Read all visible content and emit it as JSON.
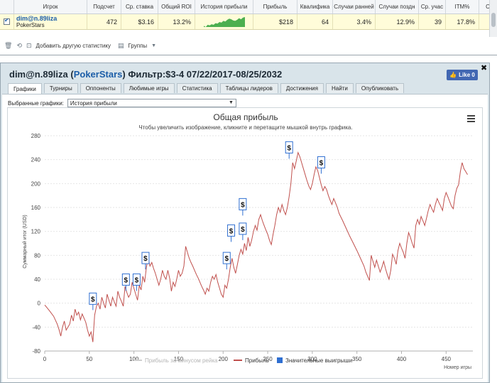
{
  "table": {
    "headers": [
      "Игрок",
      "Подсчет",
      "Ср. ставка",
      "Общий ROI",
      "История прибыли",
      "Прибыль",
      "Квалифика",
      "Случаи ранней",
      "Случаи поздн",
      "Ср. учас",
      "ITM%",
      "С"
    ],
    "row": {
      "player": "dim@n.89liza",
      "site": "PokerStars",
      "count": "472",
      "avg_stake": "$3.16",
      "roi": "13.2%",
      "profit": "$218",
      "qualify": "64",
      "early": "3.4%",
      "late": "12.9%",
      "avg_place": "39",
      "itm": "17.8%"
    },
    "sparkline": [
      0,
      -2,
      2,
      1,
      3,
      2,
      5,
      4,
      7,
      6,
      9,
      8,
      11,
      13,
      12,
      10,
      9,
      11,
      14,
      12,
      15,
      16
    ],
    "toolbar": {
      "add_stat": "Добавить другую статистику",
      "groups": "Группы"
    }
  },
  "window": {
    "player": "dim@n.89liza",
    "site": "PokerStars",
    "filter": "Фильтр:$3-4 07/22/2017-08/25/2032",
    "like_label": "Like 0",
    "tabs": [
      "Графики",
      "Турниры",
      "Оппоненты",
      "Любимые игры",
      "Статистика",
      "Таблицы лидеров",
      "Достижения",
      "Найти",
      "Опубликовать"
    ],
    "selected_label": "Выбранные графики:",
    "selected_value": "История прибыли"
  },
  "colors": {
    "profit_line": "#c0504d",
    "gridline": "#e6e6e6",
    "legend_blue": "#2f6fd1",
    "fb_blue": "#4267b2"
  },
  "chart_data": {
    "type": "line",
    "title": "Общая прибыль",
    "subtitle": "Чтобы увеличить изображение, кликните и перетащите мышкой внутрь графика.",
    "xlabel": "Номер игры",
    "ylabel": "Суммарный итог (USD)",
    "xlim": [
      0,
      480
    ],
    "ylim": [
      -80,
      280
    ],
    "xticks": [
      0,
      50,
      100,
      150,
      200,
      250,
      300,
      350,
      400,
      450
    ],
    "yticks": [
      -80,
      -40,
      0,
      40,
      80,
      120,
      160,
      200,
      240,
      280
    ],
    "grid": true,
    "legend_position": "bottom",
    "legend": [
      {
        "name": "Прибыль за минусом рейка",
        "color": "#cfcfcf"
      },
      {
        "name": "Прибыль",
        "color": "#c0504d"
      },
      {
        "name": "Значительные выигрыши",
        "color": "#2f6fd1"
      }
    ],
    "series": [
      {
        "name": "Прибыль",
        "color": "#c0504d",
        "points": [
          [
            0,
            -3
          ],
          [
            5,
            -12
          ],
          [
            10,
            -22
          ],
          [
            14,
            -35
          ],
          [
            16,
            -44
          ],
          [
            18,
            -55
          ],
          [
            20,
            -40
          ],
          [
            22,
            -30
          ],
          [
            24,
            -45
          ],
          [
            28,
            -35
          ],
          [
            30,
            -20
          ],
          [
            32,
            -30
          ],
          [
            34,
            -10
          ],
          [
            36,
            -20
          ],
          [
            38,
            -15
          ],
          [
            40,
            -28
          ],
          [
            42,
            -18
          ],
          [
            44,
            -25
          ],
          [
            46,
            -32
          ],
          [
            48,
            -45
          ],
          [
            50,
            -55
          ],
          [
            52,
            -48
          ],
          [
            54,
            -65
          ],
          [
            56,
            -20
          ],
          [
            58,
            -5
          ],
          [
            60,
            0
          ],
          [
            62,
            -10
          ],
          [
            64,
            10
          ],
          [
            66,
            0
          ],
          [
            68,
            -8
          ],
          [
            70,
            15
          ],
          [
            72,
            5
          ],
          [
            74,
            -5
          ],
          [
            76,
            10
          ],
          [
            78,
            2
          ],
          [
            80,
            -5
          ],
          [
            82,
            20
          ],
          [
            84,
            10
          ],
          [
            86,
            3
          ],
          [
            88,
            -5
          ],
          [
            90,
            28
          ],
          [
            92,
            18
          ],
          [
            94,
            10
          ],
          [
            96,
            15
          ],
          [
            98,
            35
          ],
          [
            100,
            25
          ],
          [
            102,
            15
          ],
          [
            104,
            5
          ],
          [
            106,
            30
          ],
          [
            108,
            22
          ],
          [
            110,
            45
          ],
          [
            112,
            35
          ],
          [
            114,
            60
          ],
          [
            116,
            75
          ],
          [
            118,
            62
          ],
          [
            120,
            68
          ],
          [
            122,
            58
          ],
          [
            124,
            50
          ],
          [
            126,
            40
          ],
          [
            128,
            30
          ],
          [
            130,
            40
          ],
          [
            132,
            55
          ],
          [
            134,
            45
          ],
          [
            136,
            40
          ],
          [
            138,
            55
          ],
          [
            140,
            42
          ],
          [
            142,
            20
          ],
          [
            144,
            35
          ],
          [
            146,
            28
          ],
          [
            148,
            40
          ],
          [
            150,
            55
          ],
          [
            152,
            45
          ],
          [
            154,
            50
          ],
          [
            156,
            62
          ],
          [
            158,
            95
          ],
          [
            160,
            85
          ],
          [
            162,
            75
          ],
          [
            164,
            68
          ],
          [
            166,
            62
          ],
          [
            168,
            55
          ],
          [
            170,
            48
          ],
          [
            172,
            42
          ],
          [
            174,
            35
          ],
          [
            176,
            28
          ],
          [
            178,
            22
          ],
          [
            180,
            15
          ],
          [
            182,
            25
          ],
          [
            184,
            20
          ],
          [
            186,
            35
          ],
          [
            188,
            45
          ],
          [
            190,
            40
          ],
          [
            192,
            48
          ],
          [
            194,
            35
          ],
          [
            196,
            25
          ],
          [
            198,
            15
          ],
          [
            200,
            10
          ],
          [
            202,
            30
          ],
          [
            204,
            25
          ],
          [
            206,
            40
          ],
          [
            208,
            60
          ],
          [
            210,
            75
          ],
          [
            212,
            60
          ],
          [
            214,
            50
          ],
          [
            216,
            65
          ],
          [
            218,
            80
          ],
          [
            220,
            90
          ],
          [
            222,
            82
          ],
          [
            224,
            100
          ],
          [
            226,
            88
          ],
          [
            228,
            110
          ],
          [
            230,
            95
          ],
          [
            232,
            105
          ],
          [
            234,
            120
          ],
          [
            236,
            130
          ],
          [
            238,
            122
          ],
          [
            240,
            140
          ],
          [
            242,
            148
          ],
          [
            244,
            138
          ],
          [
            246,
            130
          ],
          [
            248,
            122
          ],
          [
            250,
            115
          ],
          [
            252,
            105
          ],
          [
            254,
            98
          ],
          [
            256,
            115
          ],
          [
            258,
            130
          ],
          [
            260,
            148
          ],
          [
            262,
            160
          ],
          [
            264,
            152
          ],
          [
            266,
            165
          ],
          [
            268,
            155
          ],
          [
            270,
            148
          ],
          [
            272,
            160
          ],
          [
            274,
            178
          ],
          [
            276,
            200
          ],
          [
            278,
            235
          ],
          [
            280,
            225
          ],
          [
            282,
            238
          ],
          [
            284,
            252
          ],
          [
            286,
            245
          ],
          [
            288,
            235
          ],
          [
            290,
            225
          ],
          [
            292,
            215
          ],
          [
            294,
            205
          ],
          [
            296,
            196
          ],
          [
            298,
            190
          ],
          [
            300,
            200
          ],
          [
            302,
            215
          ],
          [
            304,
            228
          ],
          [
            306,
            222
          ],
          [
            308,
            210
          ],
          [
            310,
            198
          ],
          [
            312,
            188
          ],
          [
            314,
            195
          ],
          [
            316,
            190
          ],
          [
            318,
            180
          ],
          [
            320,
            172
          ],
          [
            322,
            165
          ],
          [
            324,
            175
          ],
          [
            326,
            168
          ],
          [
            328,
            160
          ],
          [
            330,
            150
          ],
          [
            334,
            138
          ],
          [
            338,
            125
          ],
          [
            342,
            112
          ],
          [
            346,
            100
          ],
          [
            350,
            88
          ],
          [
            354,
            75
          ],
          [
            358,
            62
          ],
          [
            360,
            52
          ],
          [
            362,
            45
          ],
          [
            364,
            38
          ],
          [
            366,
            80
          ],
          [
            368,
            70
          ],
          [
            370,
            60
          ],
          [
            372,
            72
          ],
          [
            374,
            62
          ],
          [
            376,
            52
          ],
          [
            378,
            60
          ],
          [
            380,
            70
          ],
          [
            382,
            58
          ],
          [
            384,
            48
          ],
          [
            386,
            40
          ],
          [
            388,
            55
          ],
          [
            390,
            82
          ],
          [
            392,
            75
          ],
          [
            394,
            65
          ],
          [
            396,
            88
          ],
          [
            398,
            100
          ],
          [
            400,
            92
          ],
          [
            402,
            85
          ],
          [
            404,
            75
          ],
          [
            406,
            100
          ],
          [
            408,
            118
          ],
          [
            410,
            110
          ],
          [
            412,
            100
          ],
          [
            414,
            92
          ],
          [
            416,
            130
          ],
          [
            418,
            140
          ],
          [
            420,
            132
          ],
          [
            422,
            145
          ],
          [
            424,
            138
          ],
          [
            426,
            130
          ],
          [
            428,
            142
          ],
          [
            430,
            155
          ],
          [
            432,
            165
          ],
          [
            434,
            158
          ],
          [
            436,
            152
          ],
          [
            438,
            165
          ],
          [
            440,
            175
          ],
          [
            442,
            168
          ],
          [
            444,
            162
          ],
          [
            446,
            155
          ],
          [
            448,
            175
          ],
          [
            450,
            185
          ],
          [
            452,
            178
          ],
          [
            454,
            170
          ],
          [
            456,
            162
          ],
          [
            458,
            158
          ],
          [
            460,
            180
          ],
          [
            462,
            192
          ],
          [
            464,
            198
          ],
          [
            466,
            220
          ],
          [
            468,
            235
          ],
          [
            470,
            225
          ],
          [
            474,
            215
          ]
        ]
      }
    ],
    "markers": [
      {
        "label": "$",
        "x": 54,
        "y": -2
      },
      {
        "label": "$",
        "x": 91,
        "y": 30
      },
      {
        "label": "$",
        "x": 103,
        "y": 30
      },
      {
        "label": "$",
        "x": 113,
        "y": 66
      },
      {
        "label": "$",
        "x": 204,
        "y": 66
      },
      {
        "label": "$",
        "x": 209,
        "y": 112
      },
      {
        "label": "$",
        "x": 222,
        "y": 115
      },
      {
        "label": "$",
        "x": 222,
        "y": 156
      },
      {
        "label": "$",
        "x": 274,
        "y": 251
      },
      {
        "label": "$",
        "x": 310,
        "y": 226
      }
    ]
  }
}
